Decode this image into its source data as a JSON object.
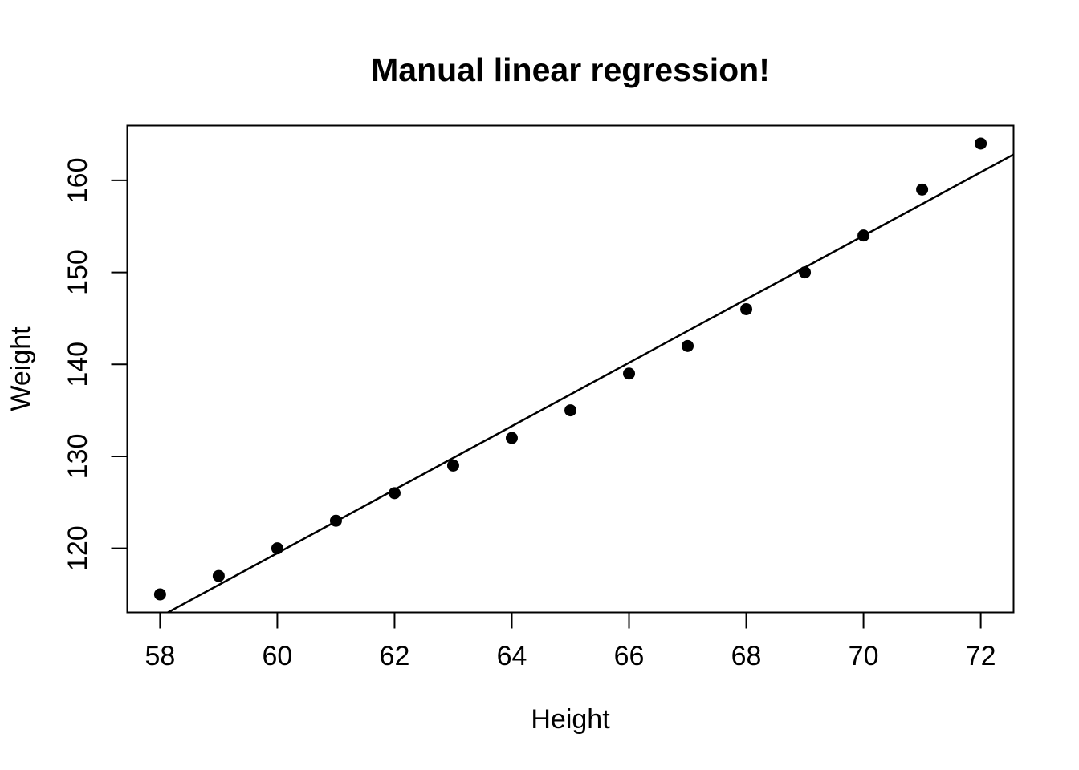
{
  "chart_data": {
    "type": "scatter",
    "title": "Manual linear regression!",
    "xlabel": "Height",
    "ylabel": "Weight",
    "x": [
      58,
      59,
      60,
      61,
      62,
      63,
      64,
      65,
      66,
      67,
      68,
      69,
      70,
      71,
      72
    ],
    "y": [
      115,
      117,
      120,
      123,
      126,
      129,
      132,
      135,
      139,
      142,
      146,
      150,
      154,
      159,
      164
    ],
    "xticks": [
      58,
      60,
      62,
      64,
      66,
      68,
      70,
      72
    ],
    "yticks": [
      120,
      130,
      140,
      150,
      160
    ],
    "xlim": [
      57.44,
      72.56
    ],
    "ylim": [
      113.04,
      165.96
    ],
    "regression_line": {
      "slope": 3.45,
      "intercept": -87.52
    },
    "grid": false,
    "legend_position": "none",
    "colors": {
      "point_color": "#000000",
      "line_color": "#000000",
      "axis_color": "#000000",
      "background": "#ffffff"
    }
  }
}
